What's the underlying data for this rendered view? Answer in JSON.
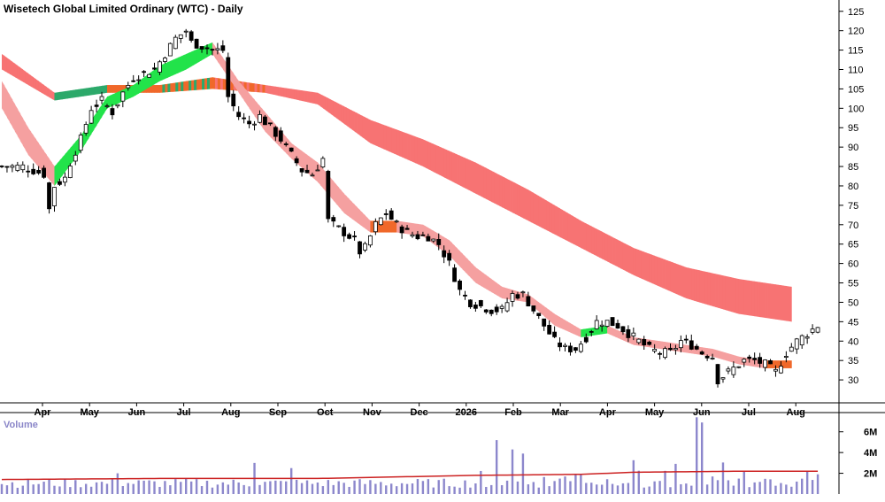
{
  "chart_data": [
    {
      "type": "candlestick",
      "title": "Wisetech Global Limited Ordinary (WTC) - Daily",
      "x_tick_labels": [
        "Apr",
        "May",
        "Jun",
        "Jul",
        "Aug",
        "Sep",
        "Oct",
        "Nov",
        "Dec",
        "2026",
        "Feb",
        "Mar",
        "Apr",
        "May",
        "Jun",
        "Jul",
        "Aug"
      ],
      "y_tick_labels": [
        30,
        35,
        40,
        45,
        50,
        55,
        60,
        65,
        70,
        75,
        80,
        85,
        90,
        95,
        100,
        105,
        110,
        115,
        120,
        125
      ],
      "ylim": [
        25,
        127
      ],
      "price_path": [
        [
          0,
          85
        ],
        [
          4,
          85
        ],
        [
          8,
          83
        ],
        [
          9,
          74
        ],
        [
          10,
          80
        ],
        [
          12,
          82
        ],
        [
          13,
          86
        ],
        [
          15,
          92
        ],
        [
          17,
          100
        ],
        [
          19,
          102
        ],
        [
          21,
          99
        ],
        [
          23,
          104
        ],
        [
          25,
          108
        ],
        [
          27,
          109
        ],
        [
          29,
          110
        ],
        [
          31,
          114
        ],
        [
          33,
          118
        ],
        [
          35,
          120
        ],
        [
          36,
          117
        ],
        [
          38,
          116
        ],
        [
          40,
          115
        ],
        [
          42,
          115
        ],
        [
          43,
          103
        ],
        [
          45,
          98
        ],
        [
          47,
          96
        ],
        [
          49,
          98
        ],
        [
          51,
          95
        ],
        [
          53,
          92
        ],
        [
          55,
          88
        ],
        [
          57,
          84
        ],
        [
          59,
          83
        ],
        [
          61,
          87
        ],
        [
          62,
          71
        ],
        [
          63,
          70
        ],
        [
          65,
          68
        ],
        [
          67,
          66
        ],
        [
          68,
          63
        ],
        [
          69,
          64
        ],
        [
          71,
          70
        ],
        [
          73,
          73
        ],
        [
          75,
          70
        ],
        [
          77,
          68
        ],
        [
          79,
          67
        ],
        [
          81,
          67
        ],
        [
          83,
          65
        ],
        [
          85,
          60
        ],
        [
          87,
          53
        ],
        [
          89,
          50
        ],
        [
          91,
          49
        ],
        [
          93,
          48
        ],
        [
          95,
          48
        ],
        [
          97,
          52
        ],
        [
          99,
          52
        ],
        [
          101,
          48
        ],
        [
          103,
          44
        ],
        [
          105,
          40
        ],
        [
          107,
          38
        ],
        [
          109,
          38
        ],
        [
          111,
          41
        ],
        [
          113,
          45
        ],
        [
          115,
          45
        ],
        [
          117,
          44
        ],
        [
          119,
          42
        ],
        [
          121,
          40
        ],
        [
          123,
          38
        ],
        [
          125,
          37
        ],
        [
          127,
          37
        ],
        [
          129,
          40
        ],
        [
          131,
          39
        ],
        [
          133,
          37
        ],
        [
          135,
          36
        ],
        [
          136,
          30
        ],
        [
          137,
          31
        ],
        [
          139,
          33
        ],
        [
          141,
          35
        ],
        [
          143,
          35
        ],
        [
          145,
          34
        ],
        [
          147,
          32
        ],
        [
          149,
          37
        ],
        [
          151,
          40
        ],
        [
          153,
          42
        ],
        [
          155,
          44
        ]
      ],
      "bands": [
        {
          "name": "short_ema_band",
          "upper": [
            [
              0,
              107
            ],
            [
              5,
              95
            ],
            [
              10,
              85
            ],
            [
              15,
              93
            ],
            [
              20,
              103
            ],
            [
              25,
              106
            ],
            [
              30,
              111
            ],
            [
              35,
              114
            ],
            [
              40,
              117
            ],
            [
              45,
              107
            ],
            [
              50,
              99
            ],
            [
              55,
              91
            ],
            [
              60,
              86
            ],
            [
              65,
              78
            ],
            [
              70,
              71
            ],
            [
              75,
              71
            ],
            [
              80,
              70
            ],
            [
              85,
              66
            ],
            [
              90,
              59
            ],
            [
              95,
              54
            ],
            [
              100,
              52
            ],
            [
              105,
              47
            ],
            [
              110,
              43
            ],
            [
              115,
              44
            ],
            [
              120,
              41
            ],
            [
              125,
              40
            ],
            [
              130,
              39
            ],
            [
              135,
              38
            ],
            [
              140,
              36
            ],
            [
              145,
              35
            ],
            [
              150,
              35
            ]
          ],
          "lower": [
            [
              0,
              100
            ],
            [
              5,
              88
            ],
            [
              10,
              80
            ],
            [
              15,
              89
            ],
            [
              20,
              100
            ],
            [
              25,
              103
            ],
            [
              30,
              107
            ],
            [
              35,
              110
            ],
            [
              40,
              114
            ],
            [
              45,
              104
            ],
            [
              50,
              94
            ],
            [
              55,
              87
            ],
            [
              60,
              81
            ],
            [
              65,
              73
            ],
            [
              70,
              68
            ],
            [
              75,
              68
            ],
            [
              80,
              67
            ],
            [
              85,
              62
            ],
            [
              90,
              55
            ],
            [
              95,
              51
            ],
            [
              100,
              50
            ],
            [
              105,
              44
            ],
            [
              110,
              41
            ],
            [
              115,
              42
            ],
            [
              120,
              39
            ],
            [
              125,
              38
            ],
            [
              130,
              37
            ],
            [
              135,
              36
            ],
            [
              140,
              34
            ],
            [
              145,
              33
            ],
            [
              150,
              33
            ]
          ]
        },
        {
          "name": "long_ema_band",
          "upper": [
            [
              0,
              114
            ],
            [
              10,
              104
            ],
            [
              20,
              106
            ],
            [
              30,
              106
            ],
            [
              40,
              108
            ],
            [
              50,
              106
            ],
            [
              60,
              104
            ],
            [
              70,
              97
            ],
            [
              80,
              92
            ],
            [
              90,
              86
            ],
            [
              100,
              79
            ],
            [
              110,
              71
            ],
            [
              120,
              64
            ],
            [
              130,
              59
            ],
            [
              140,
              56
            ],
            [
              150,
              54
            ]
          ],
          "lower": [
            [
              0,
              110
            ],
            [
              10,
              102
            ],
            [
              20,
              104
            ],
            [
              30,
              104
            ],
            [
              40,
              105
            ],
            [
              50,
              104
            ],
            [
              60,
              101
            ],
            [
              70,
              91
            ],
            [
              80,
              85
            ],
            [
              90,
              78
            ],
            [
              100,
              71
            ],
            [
              110,
              64
            ],
            [
              120,
              57
            ],
            [
              130,
              51
            ],
            [
              140,
              47
            ],
            [
              150,
              45
            ]
          ]
        }
      ]
    },
    {
      "type": "bar",
      "name": "Volume",
      "y_tick_labels": [
        "2M",
        "4M",
        "6M"
      ],
      "ylim": [
        0,
        7000000
      ],
      "volume_peaks": [
        [
          22,
          2000000
        ],
        [
          48,
          3000000
        ],
        [
          55,
          2500000
        ],
        [
          94,
          5200000
        ],
        [
          97,
          4300000
        ],
        [
          99,
          3900000
        ],
        [
          120,
          3100000
        ],
        [
          132,
          7400000
        ],
        [
          133,
          6900000
        ]
      ],
      "moving_average_line": [
        [
          0,
          1400000
        ],
        [
          30,
          1500000
        ],
        [
          60,
          1500000
        ],
        [
          90,
          1800000
        ],
        [
          110,
          1900000
        ],
        [
          120,
          2100000
        ],
        [
          140,
          2200000
        ],
        [
          155,
          2200000
        ]
      ]
    }
  ],
  "colors": {
    "candle_up": "#ffffff",
    "candle_down": "#000000",
    "short_band_bear": "#f5a0a0",
    "short_band_bull": "#22e34a",
    "long_band_bear": "#f77373",
    "long_band_bull": "#2ca96a",
    "band_transition": "#f0682a",
    "volume_bar": "#8c87cc",
    "volume_ma": "#cc2222",
    "axis_text": "#000000"
  }
}
